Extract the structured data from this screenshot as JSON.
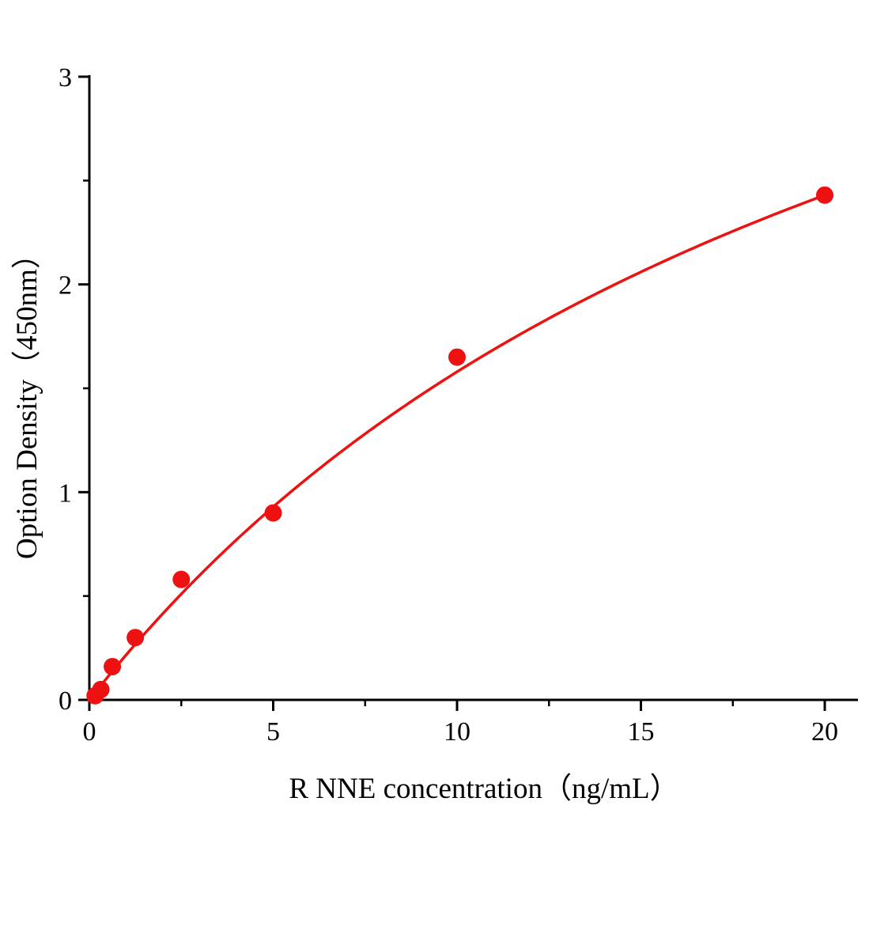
{
  "page": {
    "background": "#ffffff"
  },
  "chart_data": {
    "type": "scatter",
    "title": "",
    "xlabel": "R NNE concentration（ng/mL）",
    "ylabel": "Option Density（450nm）",
    "xlim": [
      0,
      20.9
    ],
    "ylim": [
      0,
      3
    ],
    "x_major_ticks": [
      0,
      5,
      10,
      15,
      20
    ],
    "x_minor_ticks": [
      2.5,
      7.5,
      12.5,
      17.5
    ],
    "y_major_ticks": [
      0,
      1,
      2,
      3
    ],
    "y_minor_ticks": [
      0.5,
      1.5,
      2.5
    ],
    "grid": false,
    "legend": "none",
    "series": [
      {
        "name": "standard-points",
        "points": [
          {
            "x": 0.156,
            "y": 0.02
          },
          {
            "x": 0.3125,
            "y": 0.05
          },
          {
            "x": 0.625,
            "y": 0.16
          },
          {
            "x": 1.25,
            "y": 0.3
          },
          {
            "x": 2.5,
            "y": 0.58
          },
          {
            "x": 5,
            "y": 0.9
          },
          {
            "x": 10,
            "y": 1.65
          },
          {
            "x": 20,
            "y": 2.43
          }
        ]
      }
    ],
    "fit_curve": {
      "model": "michaelis_menten",
      "vmax": 5.26,
      "km": 23.3,
      "x_start": 0.12,
      "x_end": 20
    },
    "colors": {
      "points": "#ee1111",
      "curve": "#ee1111",
      "axis": "#000000",
      "text": "#000000"
    }
  }
}
